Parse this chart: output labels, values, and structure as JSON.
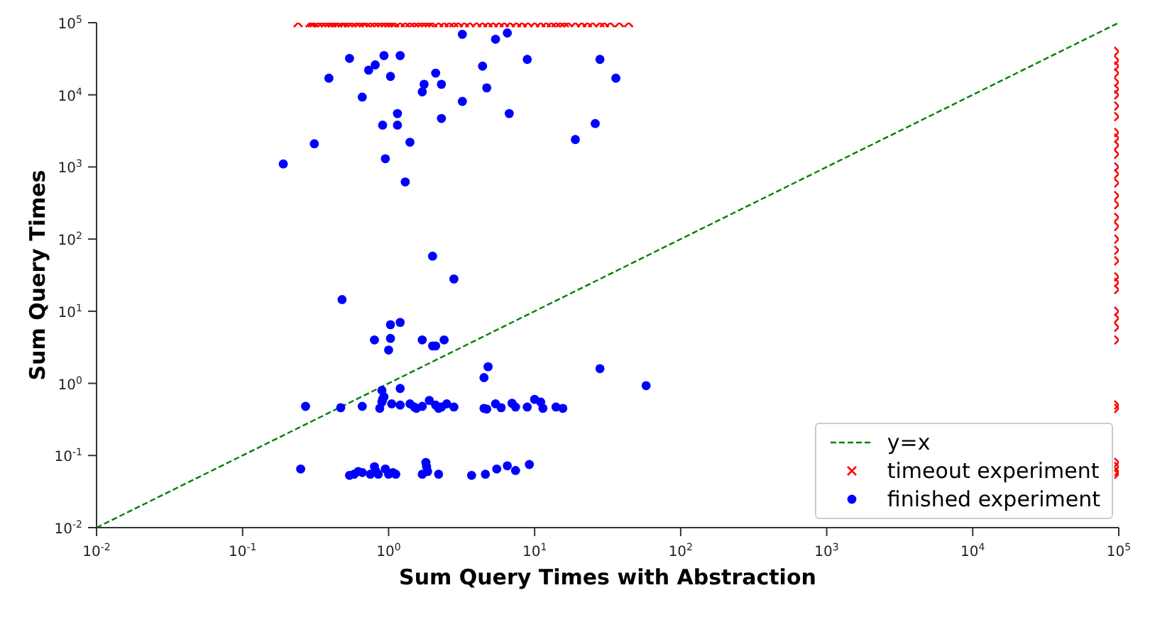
{
  "chart_data": {
    "type": "scatter",
    "xlabel": "Sum Query Times with Abstraction",
    "ylabel": "Sum Query Times",
    "log": "xy",
    "grid": false,
    "legend": "bottom right",
    "xlim": [
      0.01,
      100000
    ],
    "ylim": [
      0.01,
      100000
    ],
    "xticks": [
      {
        "value": 0.01,
        "label": "10$^{-2}$"
      },
      {
        "value": 0.1,
        "label": "10$^{-1}$"
      },
      {
        "value": 1,
        "label": "10$^{0}$"
      },
      {
        "value": 10,
        "label": "10$^{1}$"
      },
      {
        "value": 100,
        "label": "10$^{2}$"
      },
      {
        "value": 1000,
        "label": "10$^{3}$"
      },
      {
        "value": 10000,
        "label": "10$^{4}$"
      },
      {
        "value": 100000,
        "label": "10$^{5}$"
      }
    ],
    "yticks": [
      {
        "value": 0.01,
        "label": "10$^{-2}$"
      },
      {
        "value": 0.1,
        "label": "10$^{-1}$"
      },
      {
        "value": 1,
        "label": "10$^{0}$"
      },
      {
        "value": 10,
        "label": "10$^{1}$"
      },
      {
        "value": 100,
        "label": "10$^{2}$"
      },
      {
        "value": 1000,
        "label": "10$^{3}$"
      },
      {
        "value": 10000,
        "label": "10$^{4}$"
      },
      {
        "value": 100000,
        "label": "10$^{5}$"
      }
    ],
    "series": [
      {
        "name": "y=x",
        "type": "line",
        "color": "#008000",
        "line_style": "dashed",
        "marker": "none",
        "x": [
          0.01,
          100000
        ],
        "values": [
          0.01,
          100000
        ]
      },
      {
        "name": "timeout experiment",
        "type": "scatter",
        "color": "#ff0000",
        "marker": "cross",
        "x": [
          0.24,
          0.29,
          0.3,
          0.31,
          0.33,
          0.35,
          0.37,
          0.39,
          0.41,
          0.43,
          0.45,
          0.48,
          0.5,
          0.53,
          0.56,
          0.6,
          0.63,
          0.67,
          0.7,
          0.75,
          0.8,
          0.85,
          0.9,
          0.95,
          1.0,
          1.05,
          1.1,
          1.2,
          1.3,
          1.4,
          1.5,
          1.6,
          1.7,
          1.8,
          1.9,
          2.0,
          2.2,
          2.4,
          2.6,
          2.8,
          3.0,
          3.3,
          3.6,
          4.0,
          4.4,
          4.8,
          5.2,
          5.7,
          6.2,
          6.8,
          7.5,
          8.2,
          9,
          10,
          11,
          12,
          13,
          14,
          15,
          16,
          17,
          19,
          21,
          23,
          25,
          28,
          30,
          33,
          38,
          44,
          100000,
          100000,
          100000,
          100000,
          100000,
          100000,
          100000,
          100000,
          100000,
          100000,
          100000,
          100000,
          100000,
          100000,
          100000,
          100000,
          100000,
          100000,
          100000,
          100000,
          100000,
          100000,
          100000,
          100000,
          100000,
          100000,
          100000,
          100000,
          100000,
          100000,
          100000,
          100000,
          100000,
          100000,
          100000,
          100000
        ],
        "values": [
          100000,
          100000,
          100000,
          100000,
          100000,
          100000,
          100000,
          100000,
          100000,
          100000,
          100000,
          100000,
          100000,
          100000,
          100000,
          100000,
          100000,
          100000,
          100000,
          100000,
          100000,
          100000,
          100000,
          100000,
          100000,
          100000,
          100000,
          100000,
          100000,
          100000,
          100000,
          100000,
          100000,
          100000,
          100000,
          100000,
          100000,
          100000,
          100000,
          100000,
          100000,
          100000,
          100000,
          100000,
          100000,
          100000,
          100000,
          100000,
          100000,
          100000,
          100000,
          100000,
          100000,
          100000,
          100000,
          100000,
          100000,
          100000,
          100000,
          100000,
          100000,
          100000,
          100000,
          100000,
          100000,
          100000,
          100000,
          100000,
          100000,
          100000,
          40000,
          30000,
          25000,
          20000,
          15000,
          12000,
          10000,
          7000,
          5000,
          3000,
          2500,
          2000,
          1500,
          1000,
          800,
          600,
          400,
          300,
          200,
          150,
          100,
          70,
          50,
          30,
          25,
          20,
          10,
          8,
          6,
          4,
          0.5,
          0.45,
          0.08,
          0.07,
          0.06,
          0.055
        ]
      },
      {
        "name": "finished experiment",
        "type": "scatter",
        "color": "#0000ff",
        "marker": "circle",
        "x": [
          0.19,
          0.31,
          0.39,
          0.54,
          0.66,
          0.73,
          0.81,
          0.93,
          1.03,
          0.91,
          0.95,
          1.15,
          1.15,
          1.2,
          1.3,
          1.4,
          1.7,
          1.75,
          2.1,
          2.3,
          2.3,
          3.2,
          3.2,
          4.4,
          4.7,
          5.4,
          6.5,
          6.7,
          8.9,
          19,
          26,
          28,
          36,
          2.0,
          2.8,
          0.48,
          1.03,
          1.2,
          1.03,
          0.8,
          1.7,
          2.4,
          1.0,
          2.0,
          2.1,
          4.8,
          4.5,
          28,
          58,
          0.27,
          0.47,
          0.66,
          0.87,
          0.9,
          0.91,
          0.93,
          1.05,
          1.2,
          1.4,
          1.5,
          1.55,
          1.7,
          1.9,
          2.1,
          2.2,
          2.3,
          2.5,
          2.8,
          4.5,
          4.7,
          5.4,
          5.9,
          7,
          7.4,
          8.9,
          10,
          11,
          11.4,
          14,
          15.6,
          1.2,
          0.9,
          0.25,
          0.54,
          0.58,
          0.62,
          0.66,
          0.75,
          0.8,
          0.82,
          0.85,
          0.95,
          1.0,
          1.07,
          1.12,
          1.7,
          1.8,
          1.82,
          1.85,
          2.2,
          3.7,
          4.6,
          5.5,
          6.5,
          7.4,
          9.2
        ],
        "values": [
          1100,
          2100,
          17000,
          32000,
          9300,
          22000,
          26000,
          35000,
          18000,
          3800,
          1300,
          5500,
          3800,
          35000,
          620,
          2200,
          11000,
          14000,
          20000,
          14000,
          4700,
          8100,
          69000,
          25000,
          12500,
          59000,
          72000,
          5500,
          31000,
          2400,
          4000,
          31000,
          17000,
          58,
          28,
          14.5,
          6.5,
          7,
          4.2,
          4,
          4,
          4,
          2.9,
          3.3,
          3.3,
          1.7,
          1.2,
          1.6,
          0.93,
          0.48,
          0.46,
          0.48,
          0.45,
          0.55,
          0.6,
          0.65,
          0.52,
          0.5,
          0.52,
          0.47,
          0.45,
          0.48,
          0.58,
          0.5,
          0.45,
          0.47,
          0.52,
          0.47,
          0.45,
          0.44,
          0.52,
          0.46,
          0.53,
          0.47,
          0.47,
          0.6,
          0.55,
          0.45,
          0.47,
          0.45,
          0.85,
          0.8,
          0.065,
          0.053,
          0.055,
          0.06,
          0.058,
          0.055,
          0.07,
          0.06,
          0.055,
          0.065,
          0.055,
          0.058,
          0.055,
          0.055,
          0.08,
          0.07,
          0.06,
          0.055,
          0.053,
          0.055,
          0.065,
          0.072,
          0.062,
          0.075
        ]
      }
    ]
  }
}
